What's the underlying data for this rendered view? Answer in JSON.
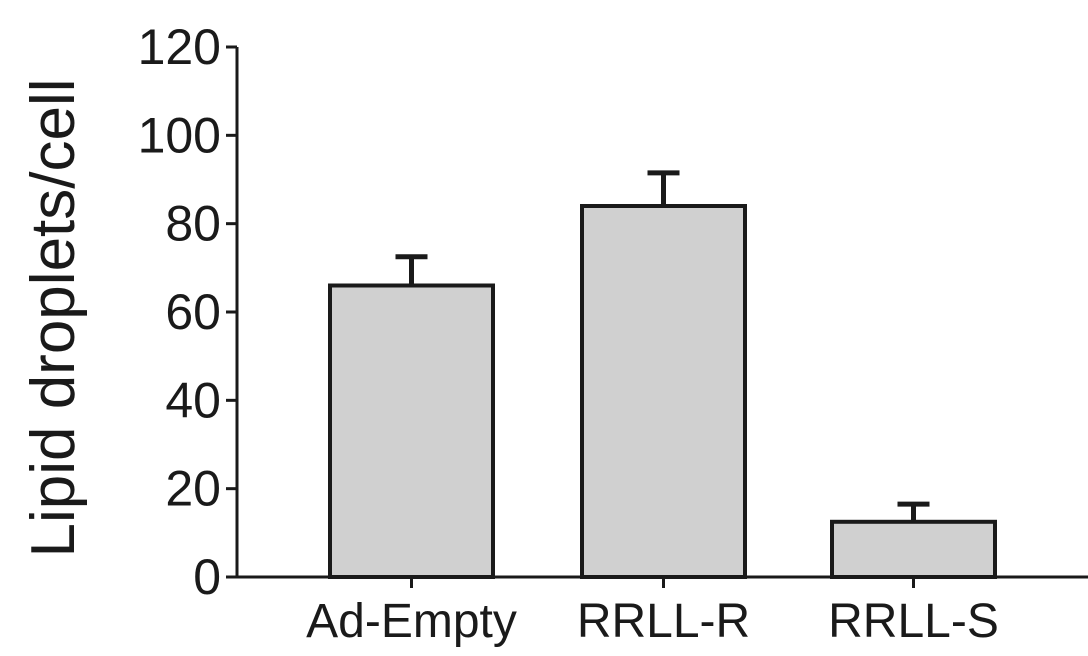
{
  "chart_data": {
    "type": "bar",
    "title": "",
    "xlabel": "",
    "ylabel": "Lipid  droplets/cell",
    "categories": [
      "Ad-Empty",
      "RRLL-R",
      "RRLL-S"
    ],
    "values": [
      66,
      84,
      12.5
    ],
    "errors": [
      6.5,
      7.5,
      4
    ],
    "ylim": [
      0,
      120
    ],
    "yticks": [
      "0",
      "20",
      "40",
      "60",
      "80",
      "100",
      "120"
    ],
    "bar_color": "#d0d0d0",
    "edge_color": "#1a1a1a",
    "grid": false,
    "legend": "none"
  }
}
